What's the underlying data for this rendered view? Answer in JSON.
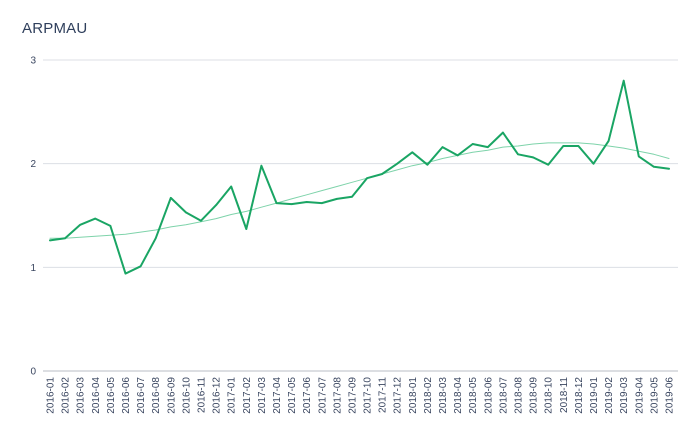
{
  "chart_data": {
    "type": "line",
    "title": "ARPMAU",
    "xlabel": "",
    "ylabel": "",
    "ylim": [
      0,
      3
    ],
    "yticks": [
      0,
      1,
      2,
      3
    ],
    "grid": true,
    "categories": [
      "2016-01",
      "2016-02",
      "2016-03",
      "2016-04",
      "2016-05",
      "2016-06",
      "2016-07",
      "2016-08",
      "2016-09",
      "2016-10",
      "2016-11",
      "2016-12",
      "2017-01",
      "2017-02",
      "2017-03",
      "2017-04",
      "2017-05",
      "2017-06",
      "2017-07",
      "2017-08",
      "2017-09",
      "2017-10",
      "2017-11",
      "2017-12",
      "2018-01",
      "2018-02",
      "2018-03",
      "2018-04",
      "2018-05",
      "2018-06",
      "2018-07",
      "2018-08",
      "2018-09",
      "2018-10",
      "2018-11",
      "2018-12",
      "2019-01",
      "2019-02",
      "2019-03",
      "2019-04",
      "2019-05",
      "2019-06"
    ],
    "series": [
      {
        "values": [
          1.26,
          1.28,
          1.41,
          1.47,
          1.4,
          0.94,
          1.01,
          1.28,
          1.67,
          1.53,
          1.45,
          1.6,
          1.78,
          1.37,
          1.98,
          1.62,
          1.61,
          1.63,
          1.62,
          1.66,
          1.68,
          1.86,
          1.9,
          2.0,
          2.11,
          1.99,
          2.16,
          2.08,
          2.19,
          2.16,
          2.3,
          2.09,
          2.06,
          1.99,
          2.17,
          2.17,
          2.0,
          2.22,
          2.8,
          2.07,
          1.97,
          1.95
        ],
        "color": "#1aa564"
      },
      {
        "values": [
          1.28,
          1.28,
          1.29,
          1.3,
          1.31,
          1.32,
          1.34,
          1.36,
          1.39,
          1.41,
          1.44,
          1.47,
          1.51,
          1.54,
          1.58,
          1.62,
          1.66,
          1.7,
          1.74,
          1.78,
          1.82,
          1.86,
          1.9,
          1.94,
          1.98,
          2.01,
          2.05,
          2.08,
          2.11,
          2.13,
          2.16,
          2.17,
          2.19,
          2.2,
          2.2,
          2.2,
          2.19,
          2.17,
          2.15,
          2.12,
          2.09,
          2.05
        ],
        "color": "#7ed3aa",
        "trendline": true
      }
    ]
  }
}
